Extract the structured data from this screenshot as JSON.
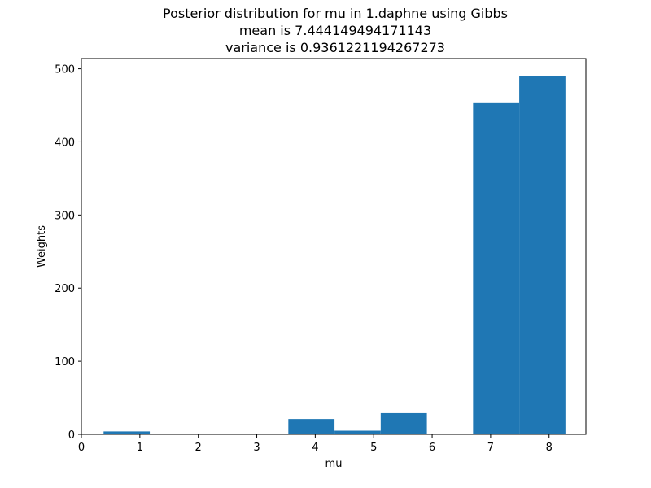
{
  "chart_data": {
    "type": "bar",
    "subtype": "histogram",
    "title_lines": [
      "Posterior distribution for mu in 1.daphne using Gibbs",
      "mean is 7.444149494171143",
      "variance is 0.9361221194267273"
    ],
    "xlabel": "mu",
    "ylabel": "Weights",
    "xlim": [
      0,
      8.63
    ],
    "ylim": [
      0,
      514
    ],
    "xticks": [
      0,
      1,
      2,
      3,
      4,
      5,
      6,
      7,
      8
    ],
    "yticks": [
      0,
      100,
      200,
      300,
      400,
      500
    ],
    "bins": [
      {
        "x0": 0.38,
        "x1": 1.17,
        "value": 4
      },
      {
        "x0": 1.17,
        "x1": 1.96,
        "value": 0
      },
      {
        "x0": 1.96,
        "x1": 2.75,
        "value": 0
      },
      {
        "x0": 2.75,
        "x1": 3.54,
        "value": 0
      },
      {
        "x0": 3.54,
        "x1": 4.33,
        "value": 21
      },
      {
        "x0": 4.33,
        "x1": 5.12,
        "value": 5
      },
      {
        "x0": 5.12,
        "x1": 5.91,
        "value": 29
      },
      {
        "x0": 5.91,
        "x1": 6.7,
        "value": 0
      },
      {
        "x0": 6.7,
        "x1": 7.49,
        "value": 453
      },
      {
        "x0": 7.49,
        "x1": 8.28,
        "value": 490
      }
    ],
    "bar_color": "#1f77b4",
    "grid": false,
    "legend": "none"
  }
}
